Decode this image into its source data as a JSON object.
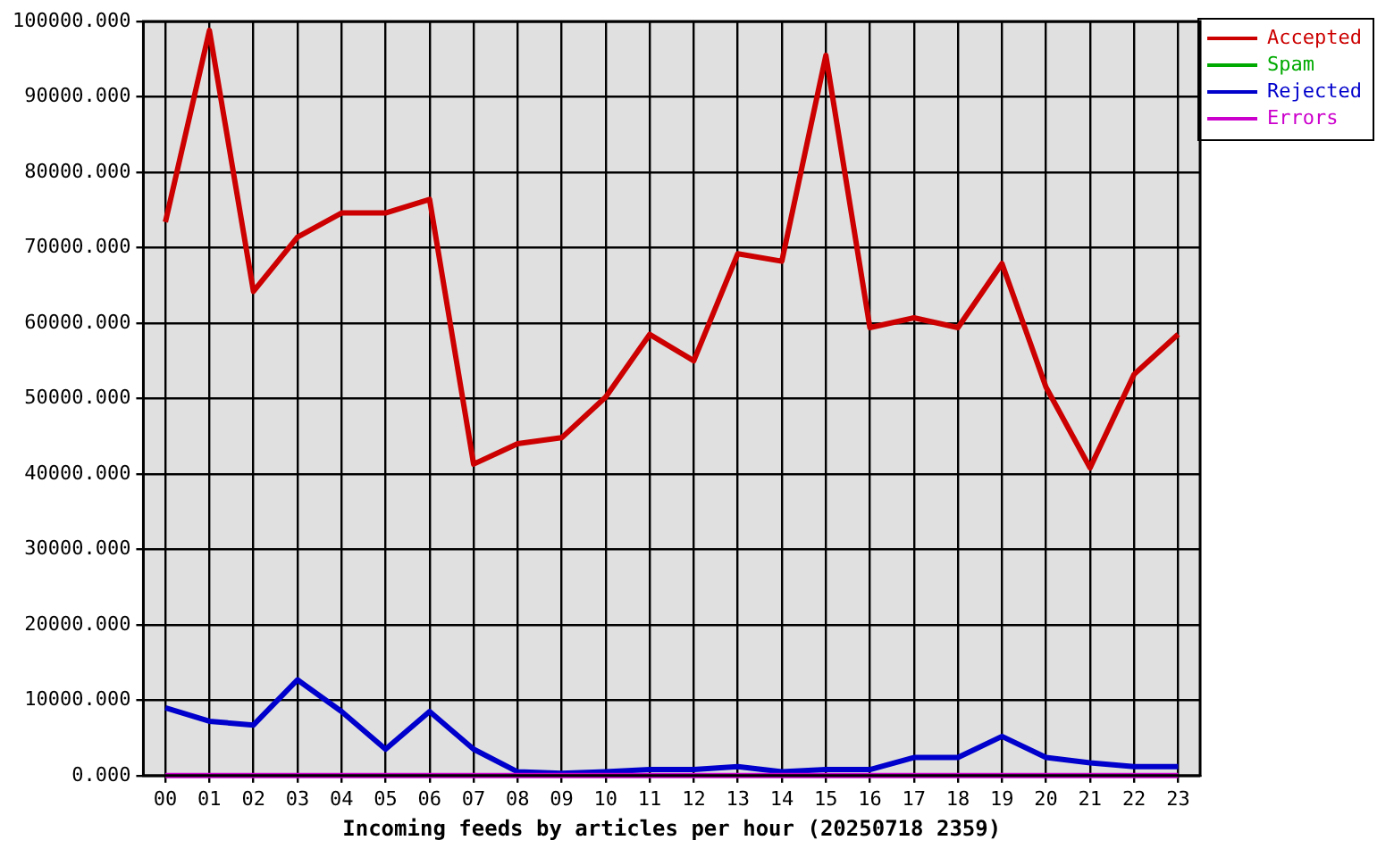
{
  "chart_data": {
    "type": "line",
    "xlabel": "Incoming feeds by articles per hour (20250718 2359)",
    "categories": [
      "00",
      "01",
      "02",
      "03",
      "04",
      "05",
      "06",
      "07",
      "08",
      "09",
      "10",
      "11",
      "12",
      "13",
      "14",
      "15",
      "16",
      "17",
      "18",
      "19",
      "20",
      "21",
      "22",
      "23"
    ],
    "series": [
      {
        "name": "Accepted",
        "color": "#cc0000",
        "values": [
          73400,
          98800,
          64200,
          71400,
          74600,
          74600,
          76400,
          41300,
          44000,
          44800,
          50200,
          58500,
          55000,
          69200,
          68200,
          95500,
          59400,
          60700,
          59400,
          67900,
          51500,
          40800,
          53200,
          58500
        ]
      },
      {
        "name": "Spam",
        "color": "#00aa00",
        "values": [
          null,
          null,
          null,
          null,
          null,
          null,
          null,
          null,
          null,
          null,
          null,
          null,
          null,
          null,
          null,
          null,
          null,
          null,
          null,
          null,
          null,
          null,
          null,
          null
        ]
      },
      {
        "name": "Rejected",
        "color": "#0000cc",
        "values": [
          9000,
          7200,
          6700,
          12700,
          8500,
          3500,
          8500,
          3500,
          500,
          300,
          500,
          800,
          800,
          1200,
          500,
          800,
          800,
          2400,
          2400,
          5200,
          2400,
          1700,
          1200,
          1200
        ]
      },
      {
        "name": "Errors",
        "color": "#cc00cc",
        "values": [
          0,
          0,
          0,
          0,
          0,
          0,
          0,
          0,
          0,
          0,
          0,
          0,
          0,
          0,
          0,
          0,
          0,
          0,
          0,
          0,
          0,
          0,
          0,
          0
        ]
      }
    ],
    "ylim": [
      0,
      100000
    ],
    "yticks": [
      {
        "value": 0,
        "label": "0.000"
      },
      {
        "value": 10000,
        "label": "10000.000"
      },
      {
        "value": 20000,
        "label": "20000.000"
      },
      {
        "value": 30000,
        "label": "30000.000"
      },
      {
        "value": 40000,
        "label": "40000.000"
      },
      {
        "value": 50000,
        "label": "50000.000"
      },
      {
        "value": 60000,
        "label": "60000.000"
      },
      {
        "value": 70000,
        "label": "70000.000"
      },
      {
        "value": 80000,
        "label": "80000.000"
      },
      {
        "value": 90000,
        "label": "90000.000"
      },
      {
        "value": 100000,
        "label": "100000.000"
      }
    ],
    "grid": true,
    "legend": "top right",
    "marker": "none",
    "line_style": "solid"
  }
}
